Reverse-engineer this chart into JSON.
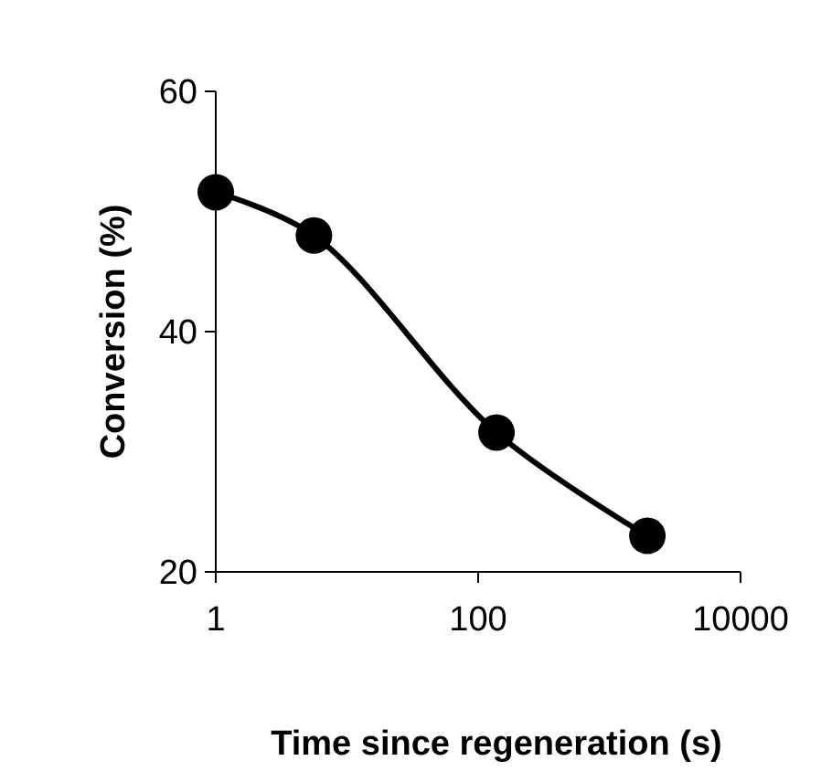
{
  "chart_data": {
    "type": "line",
    "xlabel": "Time since regeneration (s)",
    "ylabel": "Conversion (%)",
    "log": "x",
    "xlim": [
      1,
      10000
    ],
    "xticks": [
      1,
      100,
      10000
    ],
    "ylim": [
      20,
      60
    ],
    "yticks": [
      20,
      40,
      60
    ],
    "grid": false,
    "marker": "circle",
    "line_style": "solid",
    "series": [
      {
        "color": "#000000",
        "x": [
          1,
          5.6,
          138,
          1950
        ],
        "values": [
          51.6,
          48,
          31.6,
          23
        ]
      }
    ]
  }
}
